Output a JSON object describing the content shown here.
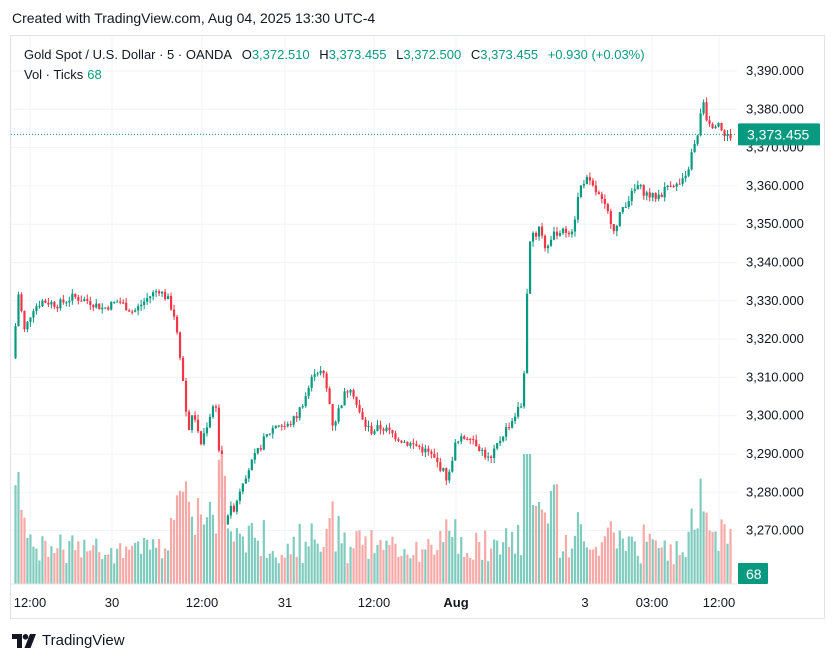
{
  "caption": "Created with TradingView.com, Aug 04, 2025 13:30 UTC-4",
  "legend": {
    "symbol": "Gold Spot / U.S. Dollar · 5 · OANDA",
    "o_label": "O",
    "o": "3,372.510",
    "h_label": "H",
    "h": "3,373.455",
    "l_label": "L",
    "l": "3,372.500",
    "c_label": "C",
    "c": "3,373.455",
    "change": "+0.930 (+0.03%)"
  },
  "volume_legend": {
    "label": "Vol · Ticks",
    "value": "68"
  },
  "brand": "TradingView",
  "colors": {
    "up": "#089981",
    "down": "#f23645",
    "up_vol": "#7fccbf",
    "down_vol": "#f7a9a7",
    "grid": "#f0f3fa",
    "text": "#131722"
  },
  "chart_data": {
    "type": "candlestick",
    "symbol": "XAU/USD",
    "interval": "5",
    "price_axis": {
      "ticks": [
        3270,
        3280,
        3290,
        3300,
        3310,
        3320,
        3330,
        3340,
        3350,
        3360,
        3370,
        3380,
        3390
      ],
      "tick_labels": [
        "3,270.000",
        "3,280.000",
        "3,290.000",
        "3,300.000",
        "3,310.000",
        "3,320.000",
        "3,330.000",
        "3,340.000",
        "3,350.000",
        "3,360.000",
        "3,370.000",
        "3,380.000",
        "3,390.000"
      ],
      "ylim": [
        3258.5,
        3394.5
      ]
    },
    "time_axis": {
      "labels": [
        "12:00",
        "30",
        "12:00",
        "31",
        "12:00",
        "Aug",
        "3",
        "03:00",
        "12:00"
      ],
      "bold": [
        false,
        false,
        false,
        false,
        false,
        true,
        false,
        false,
        false
      ]
    },
    "last_price": 3373.455,
    "last_price_label": "3,373.455",
    "last_volume_label": "68",
    "price_path": [
      [
        0,
        3315
      ],
      [
        6,
        3332
      ],
      [
        12,
        3322
      ],
      [
        20,
        3328
      ],
      [
        30,
        3330
      ],
      [
        45,
        3329
      ],
      [
        60,
        3331
      ],
      [
        75,
        3330
      ],
      [
        90,
        3328
      ],
      [
        105,
        3330
      ],
      [
        120,
        3327
      ],
      [
        135,
        3331
      ],
      [
        145,
        3333
      ],
      [
        155,
        3330
      ],
      [
        162,
        3325
      ],
      [
        168,
        3312
      ],
      [
        174,
        3296
      ],
      [
        180,
        3301
      ],
      [
        186,
        3292
      ],
      [
        192,
        3297
      ],
      [
        198,
        3302
      ],
      [
        202,
        3303
      ],
      [
        206,
        3285
      ],
      [
        210,
        3270
      ],
      [
        214,
        3275
      ],
      [
        220,
        3276
      ],
      [
        228,
        3283
      ],
      [
        238,
        3288
      ],
      [
        250,
        3294
      ],
      [
        262,
        3298
      ],
      [
        272,
        3297
      ],
      [
        282,
        3300
      ],
      [
        292,
        3306
      ],
      [
        300,
        3312
      ],
      [
        308,
        3311
      ],
      [
        314,
        3304
      ],
      [
        318,
        3297
      ],
      [
        324,
        3302
      ],
      [
        330,
        3306
      ],
      [
        336,
        3308
      ],
      [
        342,
        3302
      ],
      [
        348,
        3298
      ],
      [
        356,
        3296
      ],
      [
        366,
        3297
      ],
      [
        378,
        3295
      ],
      [
        390,
        3293
      ],
      [
        402,
        3292
      ],
      [
        414,
        3290
      ],
      [
        426,
        3286
      ],
      [
        432,
        3283
      ],
      [
        438,
        3292
      ],
      [
        446,
        3294
      ],
      [
        454,
        3295
      ],
      [
        462,
        3292
      ],
      [
        468,
        3290
      ],
      [
        474,
        3288
      ],
      [
        480,
        3292
      ],
      [
        488,
        3296
      ],
      [
        496,
        3299
      ],
      [
        502,
        3302
      ],
      [
        506,
        3303
      ],
      [
        510,
        3330
      ],
      [
        514,
        3350
      ],
      [
        518,
        3346
      ],
      [
        522,
        3350
      ],
      [
        528,
        3344
      ],
      [
        534,
        3346
      ],
      [
        540,
        3348
      ],
      [
        548,
        3348
      ],
      [
        556,
        3349
      ],
      [
        562,
        3359
      ],
      [
        568,
        3362
      ],
      [
        574,
        3360
      ],
      [
        580,
        3358
      ],
      [
        586,
        3355
      ],
      [
        592,
        3352
      ],
      [
        598,
        3348
      ],
      [
        604,
        3354
      ],
      [
        612,
        3357
      ],
      [
        620,
        3360
      ],
      [
        628,
        3358
      ],
      [
        636,
        3357
      ],
      [
        644,
        3358
      ],
      [
        652,
        3361
      ],
      [
        660,
        3360
      ],
      [
        668,
        3362
      ],
      [
        674,
        3369
      ],
      [
        680,
        3373
      ],
      [
        684,
        3384
      ],
      [
        688,
        3378
      ],
      [
        694,
        3376
      ],
      [
        700,
        3377
      ],
      [
        706,
        3373
      ],
      [
        712,
        3373
      ]
    ]
  }
}
